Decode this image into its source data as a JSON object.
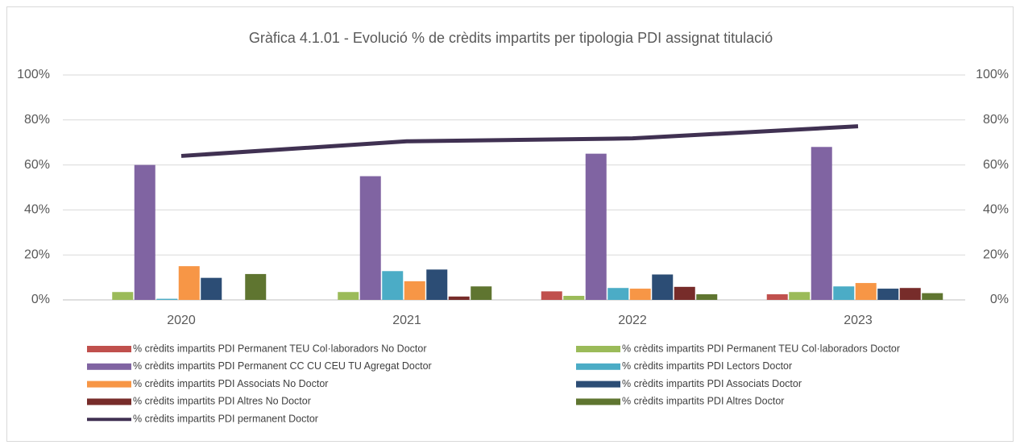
{
  "chart_data": {
    "type": "bar",
    "title": "Gràfica 4.1.01 - Evolució % de crèdits impartits per tipologia PDI assignat titulació",
    "categories": [
      "2020",
      "2021",
      "2022",
      "2023"
    ],
    "series": [
      {
        "name": "% crèdits impartits PDI Permanent TEU Col·laboradors No Doctor",
        "color": "#c0504d",
        "values": [
          0,
          0,
          3.8,
          2.5
        ]
      },
      {
        "name": "% crèdits impartits PDI Permanent TEU Col·laboradors Doctor",
        "color": "#9bbb59",
        "values": [
          3.5,
          3.5,
          1.8,
          3.5
        ]
      },
      {
        "name": "% crèdits impartits PDI Permanent CC CU CEU TU Agregat Doctor",
        "color": "#8064a2",
        "values": [
          60,
          55,
          65,
          68
        ]
      },
      {
        "name": "% crèdits impartits PDI Lectors Doctor",
        "color": "#4bacc6",
        "values": [
          0.5,
          12.8,
          5.3,
          6
        ]
      },
      {
        "name": "% crèdits impartits PDI Associats No Doctor",
        "color": "#f79646",
        "values": [
          15,
          8.3,
          5,
          7.5
        ]
      },
      {
        "name": "% crèdits impartits PDI Associats Doctor",
        "color": "#2c4d75",
        "values": [
          9.8,
          13.5,
          11.3,
          5
        ]
      },
      {
        "name": "% crèdits impartits PDI Altres No Doctor",
        "color": "#772c2a",
        "values": [
          0,
          1.5,
          5.8,
          5.3
        ]
      },
      {
        "name": "% crèdits impartits PDI Altres Doctor",
        "color": "#5f7530",
        "values": [
          11.5,
          6,
          2.5,
          3
        ]
      },
      {
        "name": "% crèdits impartits PDI permanent Doctor",
        "color": "#403152",
        "type": "line",
        "axis": "y2",
        "values": [
          64,
          70.5,
          71.8,
          77.2
        ]
      }
    ],
    "ylim": [
      0,
      100
    ],
    "yticks": [
      {
        "value": 0,
        "label": "0%"
      },
      {
        "value": 20,
        "label": "20%"
      },
      {
        "value": 40,
        "label": "40%"
      },
      {
        "value": 60,
        "label": "60%"
      },
      {
        "value": 80,
        "label": "80%"
      },
      {
        "value": 100,
        "label": "100%"
      }
    ],
    "y2lim": [
      0,
      100
    ],
    "y2ticks": [
      {
        "value": 0,
        "label": "0%"
      },
      {
        "value": 20,
        "label": "20%"
      },
      {
        "value": 40,
        "label": "40%"
      },
      {
        "value": 60,
        "label": "60%"
      },
      {
        "value": 80,
        "label": "80%"
      },
      {
        "value": 100,
        "label": "100%"
      }
    ],
    "grid": true
  }
}
